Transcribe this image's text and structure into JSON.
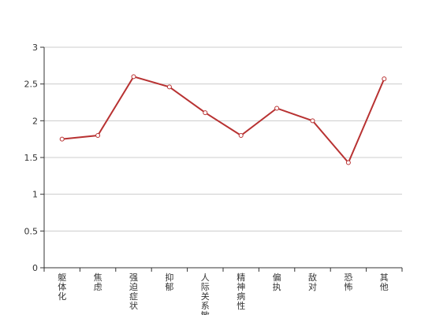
{
  "chart_data": {
    "type": "line",
    "categories": [
      "躯体化",
      "焦虑",
      "强迫症状",
      "抑郁",
      "人际关系敏感",
      "精神病性",
      "偏执",
      "敌对",
      "恐怖",
      "其他"
    ],
    "series": [
      {
        "color": "#b83232",
        "values": [
          1.75,
          1.8,
          2.6,
          2.46,
          2.11,
          1.8,
          2.17,
          2.0,
          1.43,
          2.57
        ]
      }
    ],
    "ylim": [
      0,
      3
    ],
    "yticks": [
      0,
      0.5,
      1,
      1.5,
      2,
      2.5,
      3
    ],
    "grid": true
  }
}
